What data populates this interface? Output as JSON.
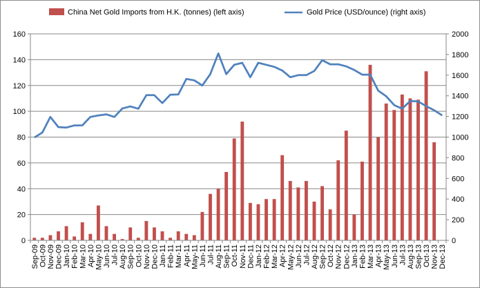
{
  "chart_data": {
    "type": "bar+line",
    "categories": [
      "Sep-09",
      "Oct-09",
      "Nov-09",
      "Dec-09",
      "Jan-10",
      "Feb-10",
      "Mar-10",
      "Apr-10",
      "May-10",
      "Jun-10",
      "Jul-10",
      "Aug-10",
      "Sep-10",
      "Oct-10",
      "Nov-10",
      "Dec-10",
      "Jan-11",
      "Feb-11",
      "Mar-11",
      "Apr-11",
      "May-11",
      "Jun-11",
      "Jul-11",
      "Aug-11",
      "Sep-11",
      "Oct-11",
      "Nov-11",
      "Dec-11",
      "Jan-12",
      "Feb-12",
      "Mar-12",
      "Apr-12",
      "May-12",
      "Jun-12",
      "Jul-12",
      "Aug-12",
      "Sep-12",
      "Oct-12",
      "Nov-12",
      "Dec-12",
      "Jan-13",
      "Feb-13",
      "Mar-13",
      "Apr-13",
      "May-13",
      "Jun-13",
      "Jul-13",
      "Aug-13",
      "Sep-13",
      "Oct-13",
      "Nov-13",
      "Dec-13"
    ],
    "x_tick_labels": [
      "Sep-09",
      "Oct-09",
      "Nov-09",
      "Dec-09",
      "Jan-10",
      "Feb-10",
      "Mar-10",
      "Apr-10",
      "May-10",
      "Jun-10",
      "Jul-10",
      "Aug-10",
      "Sep-10",
      "Oct-10",
      "Nov-10",
      "Dec-10",
      "Jan-11",
      "Feb-11",
      "Mar-11",
      "Apr-11",
      "May-11",
      "Jun-11",
      "Jul-11",
      "Aug-11",
      "Sep-11",
      "Oct-11",
      "Nov-11",
      "Dec-11",
      "Jan-12",
      "Feb-12",
      "Mar-12",
      "Apr-12",
      "May-12",
      "Jun-12",
      "Jul-12",
      "Aug-12",
      "Sep-12",
      "Oct-12",
      "Nov-12",
      "Dec-12",
      "Jan-13",
      "Feb-13",
      "Mar-13",
      "Apr-13",
      "May-13",
      "Jun-13",
      "Jul-13",
      "Aug-13",
      "Sep-13",
      "Oct-13",
      "Nov-13",
      "Dec-13"
    ],
    "series": [
      {
        "name": "China Net Gold Imports from H.K. (tonnes) (left axis)",
        "type": "bar",
        "axis": "left",
        "color": "#C0504D",
        "values": [
          2,
          2,
          4,
          7,
          11,
          3,
          14,
          5,
          27,
          11,
          5,
          1,
          10,
          2,
          15,
          10,
          7,
          2,
          7,
          5,
          4,
          22,
          36,
          40,
          53,
          79,
          92,
          29,
          28,
          32,
          32,
          66,
          46,
          41,
          46,
          30,
          42,
          24,
          62,
          85,
          20,
          61,
          136,
          80,
          106,
          101,
          113,
          110,
          109,
          131,
          76,
          null
        ]
      },
      {
        "name": "Gold Price (USD/ounce) (right axis)",
        "type": "line",
        "axis": "right",
        "color": "#4F81BD",
        "values": [
          996,
          1045,
          1195,
          1097,
          1092,
          1113,
          1114,
          1195,
          1210,
          1220,
          1195,
          1277,
          1297,
          1275,
          1406,
          1406,
          1330,
          1411,
          1413,
          1563,
          1550,
          1500,
          1610,
          1810,
          1610,
          1700,
          1719,
          1580,
          1720,
          1700,
          1680,
          1645,
          1580,
          1600,
          1600,
          1640,
          1745,
          1705,
          1705,
          1685,
          1650,
          1605,
          1605,
          1450,
          1395,
          1310,
          1275,
          1350,
          1345,
          1300,
          1260,
          1210
        ]
      }
    ],
    "left_axis": {
      "min": 0,
      "max": 160,
      "ticks": [
        0,
        20,
        40,
        60,
        80,
        100,
        120,
        140,
        160
      ]
    },
    "right_axis": {
      "min": 0,
      "max": 2000,
      "ticks": [
        0,
        200,
        400,
        600,
        800,
        1000,
        1200,
        1400,
        1600,
        1800,
        2000
      ]
    },
    "legend_position": "top",
    "grid": "horizontal"
  }
}
